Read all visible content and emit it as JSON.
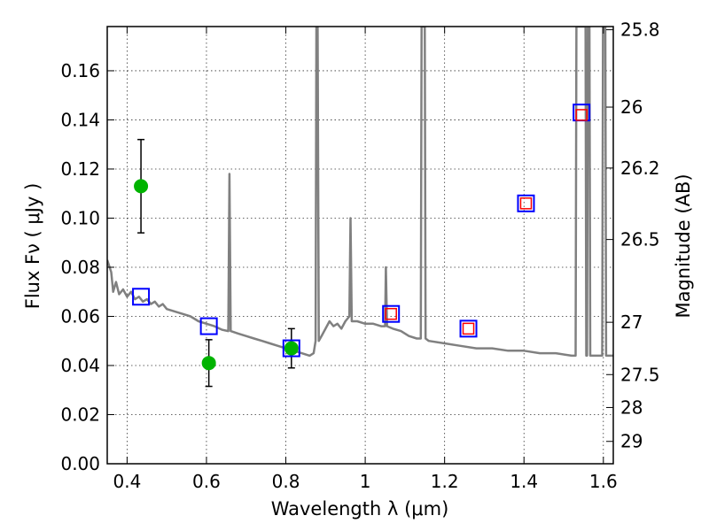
{
  "chart_data": {
    "type": "scatter",
    "title": "",
    "xlabel": "Wavelength  λ (μm)",
    "ylabel": "Flux  Fν  ( μJy )",
    "y2label": "Magnitude (AB)",
    "xlim": [
      0.35,
      1.625
    ],
    "ylim": [
      0.0,
      0.178
    ],
    "grid": true,
    "legend": "none",
    "x_ticks": [
      0.4,
      0.6,
      0.8,
      1.0,
      1.2,
      1.4,
      1.6
    ],
    "x_tick_labels": [
      "0.4",
      "0.6",
      "0.8",
      "1",
      "1.2",
      "1.4",
      "1.6"
    ],
    "y_ticks": [
      0.0,
      0.02,
      0.04,
      0.06,
      0.08,
      0.1,
      0.12,
      0.14,
      0.16
    ],
    "y_tick_labels": [
      "0.00",
      "0.02",
      "0.04",
      "0.06",
      "0.08",
      "0.10",
      "0.12",
      "0.14",
      "0.16"
    ],
    "mag_ticks": [
      {
        "label": "25.8",
        "flux": 0.1767
      },
      {
        "label": "26",
        "flux": 0.1452
      },
      {
        "label": "26.2",
        "flux": 0.1204
      },
      {
        "label": "26.5",
        "flux": 0.0913
      },
      {
        "label": "27",
        "flux": 0.0576
      },
      {
        "label": "27.5",
        "flux": 0.0363
      },
      {
        "label": "28",
        "flux": 0.0229
      },
      {
        "label": "29",
        "flux": 0.0091
      }
    ],
    "series": [
      {
        "kind": "line",
        "color": "#808080",
        "points": [
          [
            0.35,
            0.083
          ],
          [
            0.36,
            0.078
          ],
          [
            0.365,
            0.07
          ],
          [
            0.372,
            0.074
          ],
          [
            0.38,
            0.069
          ],
          [
            0.39,
            0.071
          ],
          [
            0.4,
            0.068
          ],
          [
            0.41,
            0.07
          ],
          [
            0.42,
            0.067
          ],
          [
            0.43,
            0.068
          ],
          [
            0.44,
            0.066
          ],
          [
            0.45,
            0.067
          ],
          [
            0.46,
            0.065
          ],
          [
            0.47,
            0.066
          ],
          [
            0.48,
            0.064
          ],
          [
            0.49,
            0.065
          ],
          [
            0.5,
            0.063
          ],
          [
            0.52,
            0.062
          ],
          [
            0.54,
            0.061
          ],
          [
            0.56,
            0.06
          ],
          [
            0.58,
            0.058
          ],
          [
            0.6,
            0.057
          ],
          [
            0.62,
            0.056
          ],
          [
            0.64,
            0.0545
          ],
          [
            0.655,
            0.054
          ],
          [
            0.658,
            0.118
          ],
          [
            0.661,
            0.054
          ],
          [
            0.68,
            0.053
          ],
          [
            0.7,
            0.052
          ],
          [
            0.72,
            0.051
          ],
          [
            0.74,
            0.05
          ],
          [
            0.76,
            0.049
          ],
          [
            0.78,
            0.048
          ],
          [
            0.8,
            0.047
          ],
          [
            0.82,
            0.046
          ],
          [
            0.84,
            0.045
          ],
          [
            0.86,
            0.044
          ],
          [
            0.87,
            0.045
          ],
          [
            0.875,
            0.05
          ],
          [
            0.877,
            0.178
          ],
          [
            0.88,
            0.178
          ],
          [
            0.883,
            0.05
          ],
          [
            0.89,
            0.052
          ],
          [
            0.9,
            0.055
          ],
          [
            0.91,
            0.058
          ],
          [
            0.92,
            0.056
          ],
          [
            0.93,
            0.057
          ],
          [
            0.94,
            0.055
          ],
          [
            0.95,
            0.058
          ],
          [
            0.96,
            0.06
          ],
          [
            0.963,
            0.1
          ],
          [
            0.966,
            0.058
          ],
          [
            0.98,
            0.058
          ],
          [
            1.0,
            0.057
          ],
          [
            1.02,
            0.057
          ],
          [
            1.04,
            0.056
          ],
          [
            1.05,
            0.056
          ],
          [
            1.052,
            0.08
          ],
          [
            1.055,
            0.056
          ],
          [
            1.07,
            0.055
          ],
          [
            1.09,
            0.054
          ],
          [
            1.11,
            0.052
          ],
          [
            1.13,
            0.051
          ],
          [
            1.14,
            0.051
          ],
          [
            1.142,
            0.178
          ],
          [
            1.15,
            0.178
          ],
          [
            1.152,
            0.051
          ],
          [
            1.16,
            0.05
          ],
          [
            1.2,
            0.049
          ],
          [
            1.24,
            0.048
          ],
          [
            1.28,
            0.047
          ],
          [
            1.32,
            0.047
          ],
          [
            1.36,
            0.046
          ],
          [
            1.4,
            0.046
          ],
          [
            1.44,
            0.045
          ],
          [
            1.48,
            0.045
          ],
          [
            1.52,
            0.044
          ],
          [
            1.53,
            0.044
          ],
          [
            1.532,
            0.178
          ],
          [
            1.555,
            0.178
          ],
          [
            1.557,
            0.044
          ],
          [
            1.559,
            0.044
          ],
          [
            1.561,
            0.178
          ],
          [
            1.565,
            0.178
          ],
          [
            1.567,
            0.044
          ],
          [
            1.59,
            0.044
          ],
          [
            1.597,
            0.044
          ],
          [
            1.599,
            0.178
          ],
          [
            1.605,
            0.178
          ],
          [
            1.607,
            0.044
          ],
          [
            1.625,
            0.044
          ]
        ]
      },
      {
        "kind": "points",
        "marker": "circle",
        "color": "#00b300",
        "points": [
          {
            "x": 0.435,
            "y": 0.113,
            "yerr": 0.019
          },
          {
            "x": 0.606,
            "y": 0.041,
            "yerr": 0.0095
          },
          {
            "x": 0.814,
            "y": 0.047,
            "yerr": 0.008
          }
        ]
      },
      {
        "kind": "points",
        "marker": "square",
        "color": "#0000ff",
        "points": [
          {
            "x": 0.435,
            "y": 0.068
          },
          {
            "x": 0.606,
            "y": 0.056
          },
          {
            "x": 0.814,
            "y": 0.047
          },
          {
            "x": 1.065,
            "y": 0.061
          },
          {
            "x": 1.26,
            "y": 0.055
          },
          {
            "x": 1.405,
            "y": 0.106
          },
          {
            "x": 1.545,
            "y": 0.143
          }
        ]
      },
      {
        "kind": "points",
        "marker": "square-small",
        "color": "#ff0000",
        "points": [
          {
            "x": 1.065,
            "y": 0.061
          },
          {
            "x": 1.26,
            "y": 0.055
          },
          {
            "x": 1.405,
            "y": 0.106
          },
          {
            "x": 1.545,
            "y": 0.142
          }
        ]
      }
    ]
  }
}
